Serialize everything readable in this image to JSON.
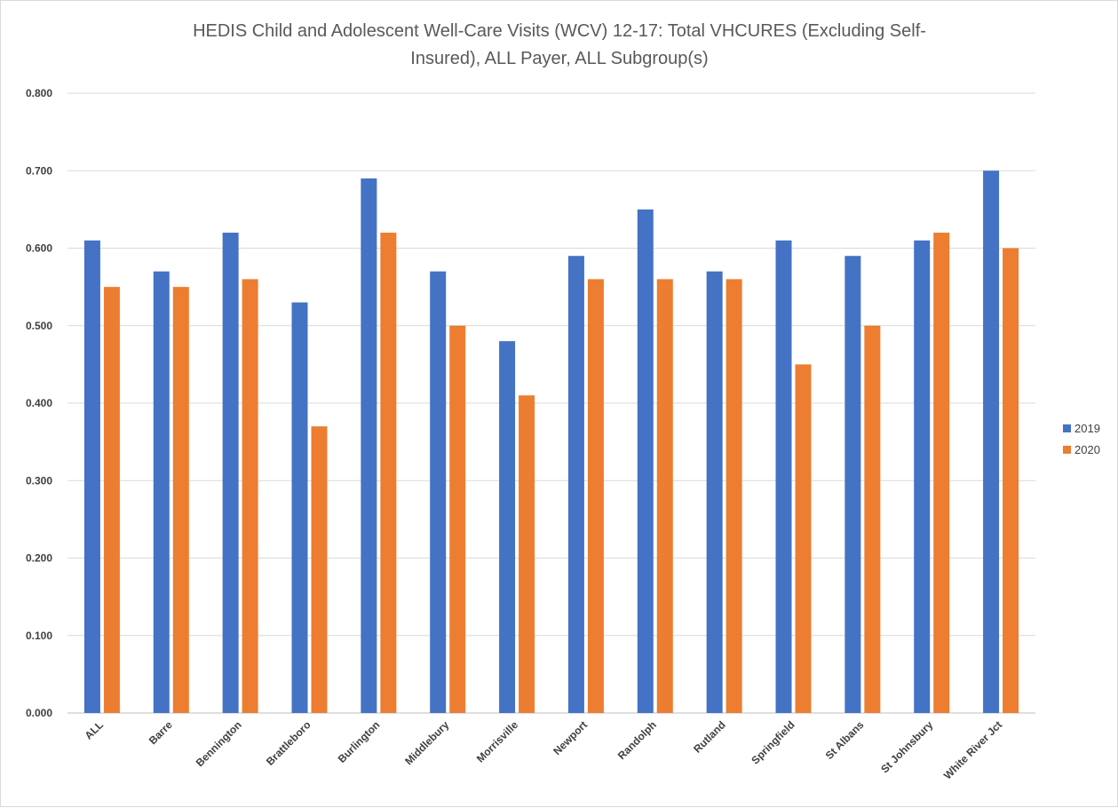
{
  "chart_data": {
    "type": "bar",
    "title": "HEDIS Child and Adolescent Well-Care Visits (WCV) 12-17: Total VHCURES (Excluding Self-Insured), ALL Payer, ALL Subgroup(s)",
    "title_lines": [
      "HEDIS Child and Adolescent Well-Care Visits (WCV) 12-17: Total VHCURES (Excluding Self-",
      "Insured), ALL Payer, ALL Subgroup(s)"
    ],
    "xlabel": "",
    "ylabel": "",
    "ylim": [
      0,
      0.8
    ],
    "yticks": [
      "0.000",
      "0.100",
      "0.200",
      "0.300",
      "0.400",
      "0.500",
      "0.600",
      "0.700",
      "0.800"
    ],
    "grid": true,
    "legend_position": "right",
    "categories": [
      "ALL",
      "Barre",
      "Bennington",
      "Brattleboro",
      "Burlington",
      "Middlebury",
      "Morrisville",
      "Newport",
      "Randolph",
      "Rutland",
      "Springfield",
      "St Albans",
      "St Johnsbury",
      "White River Jct"
    ],
    "series": [
      {
        "name": "2019",
        "color": "#4472c4",
        "values": [
          0.61,
          0.57,
          0.62,
          0.53,
          0.69,
          0.57,
          0.48,
          0.59,
          0.65,
          0.57,
          0.61,
          0.59,
          0.61,
          0.7
        ]
      },
      {
        "name": "2020",
        "color": "#ed7d31",
        "values": [
          0.55,
          0.55,
          0.56,
          0.37,
          0.62,
          0.5,
          0.41,
          0.56,
          0.56,
          0.56,
          0.45,
          0.5,
          0.62,
          0.6
        ]
      }
    ]
  }
}
